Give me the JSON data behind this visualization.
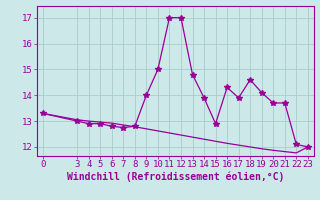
{
  "x": [
    0,
    3,
    4,
    5,
    6,
    7,
    8,
    9,
    10,
    11,
    12,
    13,
    14,
    15,
    16,
    17,
    18,
    19,
    20,
    21,
    22,
    23
  ],
  "y_line": [
    13.3,
    13.0,
    12.9,
    12.9,
    12.8,
    12.75,
    12.8,
    14.0,
    15.0,
    17.0,
    17.0,
    14.8,
    13.9,
    12.9,
    14.3,
    13.9,
    14.6,
    14.1,
    13.7,
    13.7,
    12.1,
    12.0
  ],
  "y_smooth": [
    13.3,
    13.05,
    13.0,
    12.96,
    12.92,
    12.85,
    12.78,
    12.7,
    12.62,
    12.54,
    12.46,
    12.38,
    12.3,
    12.22,
    12.14,
    12.07,
    12.0,
    11.93,
    11.87,
    11.82,
    11.77,
    12.0
  ],
  "line_color": "#990099",
  "bg_color": "#cce8e8",
  "grid_color": "#aacccc",
  "xlabel": "Windchill (Refroidissement éolien,°C)",
  "ylabel_ticks": [
    12,
    13,
    14,
    15,
    16,
    17
  ],
  "xlim": [
    -0.5,
    23.5
  ],
  "ylim": [
    11.65,
    17.45
  ],
  "xticks": [
    0,
    3,
    4,
    5,
    6,
    7,
    8,
    9,
    10,
    11,
    12,
    13,
    14,
    15,
    16,
    17,
    18,
    19,
    20,
    21,
    22,
    23
  ],
  "marker": "*",
  "marker_size": 4,
  "line_width": 0.9,
  "tick_font_size": 6.5,
  "label_font_size": 7.0
}
